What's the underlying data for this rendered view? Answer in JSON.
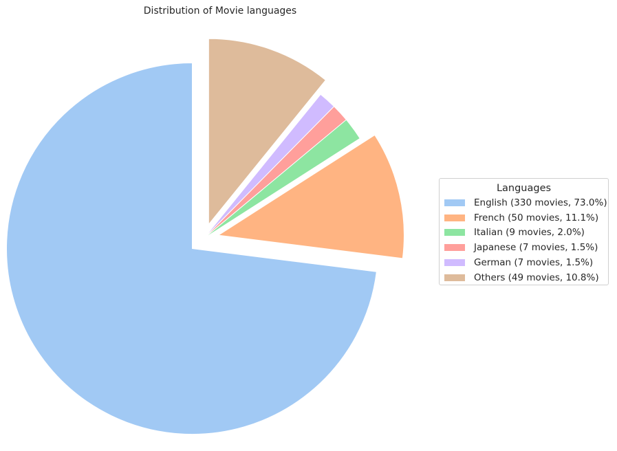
{
  "chart_data": {
    "type": "pie",
    "title": "Distribution of Movie languages",
    "legend_title": "Languages",
    "legend_position": "center-right",
    "start_angle_deg": 90,
    "direction": "counterclockwise",
    "slices": [
      {
        "label": "English (330 movies, 73.0%)",
        "name": "English",
        "value": 330,
        "percent": 73.0,
        "color": "#a1c9f4",
        "exploded": true
      },
      {
        "label": "French (50 movies, 11.1%)",
        "name": "French",
        "value": 50,
        "percent": 11.1,
        "color": "#ffb482",
        "exploded": true
      },
      {
        "label": "Italian (9 movies, 2.0%)",
        "name": "Italian",
        "value": 9,
        "percent": 2.0,
        "color": "#8de5a1",
        "exploded": false
      },
      {
        "label": "Japanese (7 movies, 1.5%)",
        "name": "Japanese",
        "value": 7,
        "percent": 1.5,
        "color": "#ff9f9b",
        "exploded": false
      },
      {
        "label": "German (7 movies, 1.5%)",
        "name": "German",
        "value": 7,
        "percent": 1.5,
        "color": "#d0bbff",
        "exploded": false
      },
      {
        "label": "Others (49 movies, 10.8%)",
        "name": "Others",
        "value": 49,
        "percent": 10.8,
        "color": "#debb9b",
        "exploded": true
      }
    ]
  }
}
